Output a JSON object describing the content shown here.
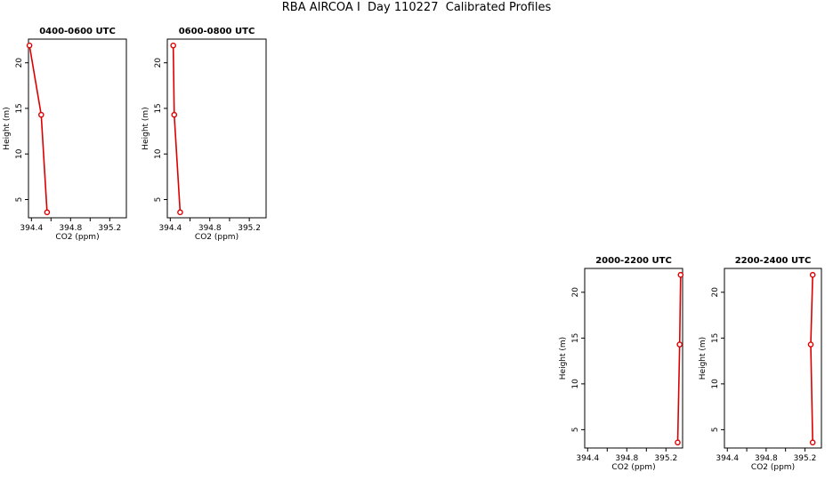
{
  "title": "RBA AIRCOA I  Day 110227  Calibrated Profiles",
  "colors": {
    "series": "#dd0000",
    "axis": "#000000"
  },
  "chart_data": [
    {
      "type": "line",
      "title": "0400-0600 UTC",
      "xlabel": "CO2 (ppm)",
      "ylabel": "Height (m)",
      "xlim": [
        394.37,
        395.37
      ],
      "ylim": [
        3.0,
        22.6
      ],
      "xticks": [
        "394.4",
        "394.8",
        "395.2"
      ],
      "yticks": [
        "5",
        "10",
        "15",
        "20"
      ],
      "grid": false,
      "series": [
        {
          "x": [
            394.38,
            394.5,
            394.56
          ],
          "y": [
            21.9,
            14.3,
            3.6
          ]
        }
      ]
    },
    {
      "type": "line",
      "title": "0600-0800 UTC",
      "xlabel": "CO2 (ppm)",
      "ylabel": "Height (m)",
      "xlim": [
        394.37,
        395.37
      ],
      "ylim": [
        3.0,
        22.6
      ],
      "xticks": [
        "394.4",
        "394.8",
        "395.2"
      ],
      "yticks": [
        "5",
        "10",
        "15",
        "20"
      ],
      "grid": false,
      "series": [
        {
          "x": [
            394.43,
            394.44,
            394.5
          ],
          "y": [
            21.9,
            14.3,
            3.6
          ]
        }
      ]
    },
    {
      "type": "line",
      "title": "2000-2200 UTC",
      "xlabel": "CO2 (ppm)",
      "ylabel": "Height (m)",
      "xlim": [
        394.37,
        395.37
      ],
      "ylim": [
        3.0,
        22.6
      ],
      "xticks": [
        "394.4",
        "394.8",
        "395.2"
      ],
      "yticks": [
        "5",
        "10",
        "15",
        "20"
      ],
      "grid": false,
      "series": [
        {
          "x": [
            395.35,
            395.34,
            395.32
          ],
          "y": [
            21.9,
            14.3,
            3.6
          ]
        }
      ]
    },
    {
      "type": "line",
      "title": "2200-2400 UTC",
      "xlabel": "CO2 (ppm)",
      "ylabel": "Height (m)",
      "xlim": [
        394.37,
        395.37
      ],
      "ylim": [
        3.0,
        22.6
      ],
      "xticks": [
        "394.4",
        "394.8",
        "395.2"
      ],
      "yticks": [
        "5",
        "10",
        "15",
        "20"
      ],
      "grid": false,
      "series": [
        {
          "x": [
            395.28,
            395.26,
            395.28
          ],
          "y": [
            21.9,
            14.3,
            3.6
          ]
        }
      ]
    }
  ]
}
